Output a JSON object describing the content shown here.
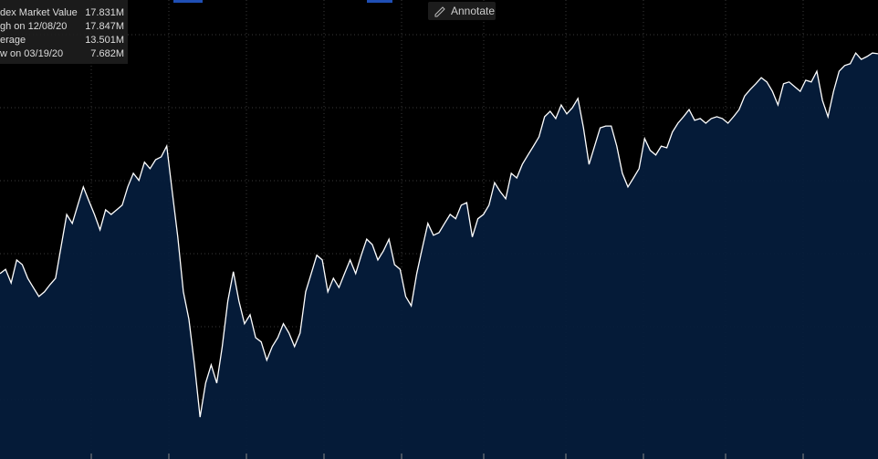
{
  "chart_data": {
    "type": "area",
    "line_color": "#ffffff",
    "fill_color": "#051d3d",
    "ylim": [
      6.51,
      19.33
    ],
    "values": [
      11.69,
      11.81,
      11.43,
      12.07,
      11.94,
      11.56,
      11.3,
      11.05,
      11.18,
      11.38,
      11.56,
      12.45,
      13.34,
      13.09,
      13.6,
      14.11,
      13.72,
      13.34,
      12.91,
      13.47,
      13.34,
      13.47,
      13.6,
      14.11,
      14.49,
      14.29,
      14.8,
      14.62,
      14.87,
      14.95,
      15.25,
      13.98,
      12.71,
      11.18,
      10.41,
      9.14,
      7.68,
      8.63,
      9.14,
      8.63,
      9.65,
      10.92,
      11.74,
      10.92,
      10.29,
      10.54,
      9.9,
      9.78,
      9.27,
      9.65,
      9.9,
      10.29,
      10.03,
      9.65,
      10.03,
      11.18,
      11.69,
      12.2,
      12.07,
      11.18,
      11.56,
      11.3,
      11.69,
      12.07,
      11.69,
      12.2,
      12.65,
      12.5,
      12.07,
      12.32,
      12.65,
      11.94,
      11.81,
      11.05,
      10.79,
      11.69,
      12.4,
      13.09,
      12.76,
      12.83,
      13.09,
      13.34,
      13.22,
      13.6,
      13.67,
      12.71,
      13.22,
      13.34,
      13.6,
      14.23,
      13.98,
      13.78,
      14.49,
      14.36,
      14.74,
      15.0,
      15.25,
      15.51,
      16.07,
      16.22,
      16.02,
      16.4,
      16.15,
      16.32,
      16.58,
      15.76,
      14.74,
      15.25,
      15.76,
      15.81,
      15.81,
      15.25,
      14.49,
      14.11,
      14.36,
      14.62,
      15.46,
      15.13,
      15.0,
      15.25,
      15.2,
      15.64,
      15.89,
      16.07,
      16.27,
      15.97,
      16.02,
      15.89,
      16.02,
      16.07,
      16.02,
      15.89,
      16.07,
      16.27,
      16.65,
      16.83,
      16.99,
      17.16,
      17.04,
      16.78,
      16.4,
      16.99,
      17.04,
      16.91,
      16.78,
      17.09,
      17.04,
      17.34,
      16.53,
      16.07,
      16.78,
      17.34,
      17.5,
      17.55,
      17.85,
      17.67,
      17.75,
      17.85,
      17.83
    ]
  },
  "legend_rows": [
    {
      "label": "dex Market Value",
      "value": "17.831M"
    },
    {
      "label": "gh on 12/08/20",
      "value": "17.847M"
    },
    {
      "label": "erage",
      "value": "13.501M"
    },
    {
      "label": "w on 03/19/20",
      "value": "7.682M"
    }
  ],
  "annotate_button": "Annotate"
}
